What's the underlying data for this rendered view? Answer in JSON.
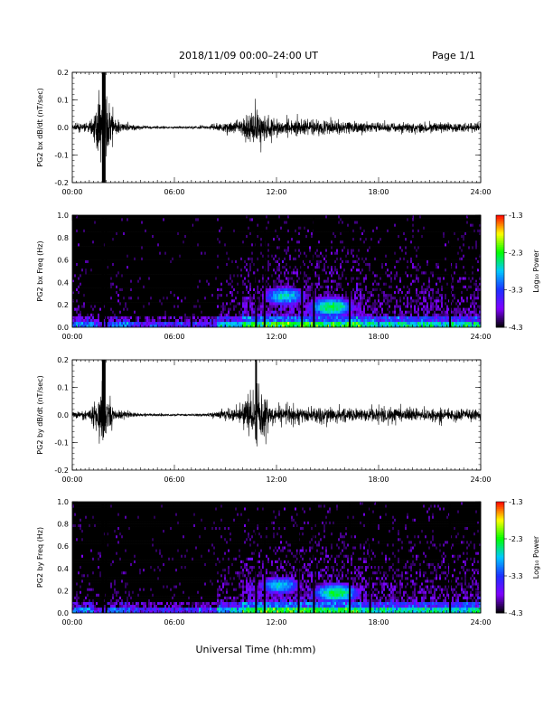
{
  "header": {
    "title": "2018/11/09   00:00–24:00  UT",
    "page": "Page 1/1"
  },
  "footer": {
    "xlabel": "Universal Time (hh:mm)"
  },
  "colorbar": {
    "label": "Log₁₀ Power",
    "ticks": [
      "-1.3",
      "-2.3",
      "-3.3",
      "-4.3"
    ],
    "colors": [
      "#ff0000",
      "#ffff00",
      "#00ff00",
      "#00c8ff",
      "#1c30ff",
      "#8000ff",
      "#000000"
    ]
  },
  "chart_data": [
    {
      "type": "line",
      "ylabel": "PG2 bx dB/dt (nT/sec)",
      "xticks": [
        "00:00",
        "06:00",
        "12:00",
        "18:00",
        "24:00"
      ],
      "yticks": [
        "0.2",
        "0.1",
        "0.0",
        "-0.1",
        "-0.2"
      ],
      "xlim": [
        0,
        24
      ],
      "ylim": [
        -0.2,
        0.2
      ],
      "series": [
        {
          "x": [
            0,
            1,
            1.8,
            2,
            2.5,
            4,
            6,
            8,
            9,
            10,
            10.8,
            12,
            14,
            16,
            18,
            20,
            22,
            24
          ],
          "amp": [
            0.02,
            0.03,
            0.2,
            0.2,
            0.04,
            0.01,
            0.006,
            0.01,
            0.03,
            0.05,
            0.12,
            0.05,
            0.05,
            0.04,
            0.03,
            0.03,
            0.03,
            0.03
          ]
        }
      ]
    },
    {
      "type": "heatmap",
      "ylabel": "PG2 bx Freq (Hz)",
      "xticks": [
        "00:00",
        "06:00",
        "12:00",
        "18:00",
        "24:00"
      ],
      "yticks": [
        "1.0",
        "0.8",
        "0.6",
        "0.4",
        "0.2",
        "0.0"
      ],
      "xlim": [
        0,
        24
      ],
      "ylim": [
        0,
        1.0
      ],
      "zlim": [
        -4.3,
        -1.3
      ],
      "bright_patches": [
        {
          "t": 15.2,
          "f": 0.18,
          "level": -2.4
        },
        {
          "t": 12.5,
          "f": 0.28,
          "level": -2.7
        }
      ],
      "vertical_lines": [
        1.8,
        2.0,
        7.0,
        10.8,
        11.3,
        13.5,
        14.2,
        16.3,
        22.2
      ]
    },
    {
      "type": "line",
      "ylabel": "PG2 by dB/dt (nT/sec)",
      "xticks": [
        "00:00",
        "06:00",
        "12:00",
        "18:00",
        "24:00"
      ],
      "yticks": [
        "0.2",
        "0.1",
        "0.0",
        "-0.1",
        "-0.2"
      ],
      "xlim": [
        0,
        24
      ],
      "ylim": [
        -0.2,
        0.2
      ],
      "series": [
        {
          "x": [
            0,
            1,
            1.8,
            2,
            2.5,
            4,
            6,
            8,
            9,
            10,
            10.8,
            12,
            14,
            16,
            18,
            20,
            22,
            24
          ],
          "amp": [
            0.02,
            0.03,
            0.2,
            0.12,
            0.03,
            0.01,
            0.006,
            0.01,
            0.03,
            0.05,
            0.2,
            0.05,
            0.05,
            0.04,
            0.04,
            0.04,
            0.04,
            0.03
          ]
        }
      ]
    },
    {
      "type": "heatmap",
      "ylabel": "PG2 by Freq (Hz)",
      "xticks": [
        "00:00",
        "06:00",
        "12:00",
        "18:00",
        "24:00"
      ],
      "yticks": [
        "1.0",
        "0.8",
        "0.6",
        "0.4",
        "0.2",
        "0.0"
      ],
      "xlim": [
        0,
        24
      ],
      "ylim": [
        0,
        1.0
      ],
      "zlim": [
        -4.3,
        -1.3
      ],
      "bright_patches": [
        {
          "t": 15.5,
          "f": 0.18,
          "level": -2.4
        },
        {
          "t": 12.2,
          "f": 0.25,
          "level": -2.8
        }
      ],
      "vertical_lines": [
        1.8,
        2.0,
        10.8,
        11.3,
        13.3,
        14.2,
        16.3,
        17.5,
        22.2
      ]
    }
  ]
}
